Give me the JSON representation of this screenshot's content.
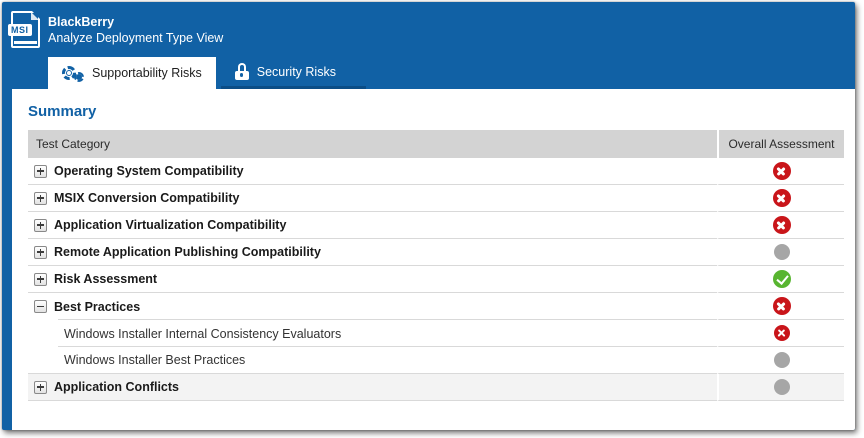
{
  "window": {
    "app_icon_label": "MSI",
    "title": "BlackBerry",
    "subtitle": "Analyze Deployment Type View"
  },
  "tabs": [
    {
      "label": "Supportability Risks",
      "icon": "gears-icon",
      "active": true
    },
    {
      "label": "Security Risks",
      "icon": "lock-icon",
      "active": false
    }
  ],
  "main": {
    "heading": "Summary",
    "table": {
      "columns": [
        "Test Category",
        "Overall Assessment"
      ],
      "rows": [
        {
          "label": "Operating System Compatibility",
          "level": 0,
          "expander": "plus",
          "status": "error"
        },
        {
          "label": "MSIX Conversion Compatibility",
          "level": 0,
          "expander": "plus",
          "status": "error"
        },
        {
          "label": "Application Virtualization Compatibility",
          "level": 0,
          "expander": "plus",
          "status": "error"
        },
        {
          "label": "Remote Application Publishing Compatibility",
          "level": 0,
          "expander": "plus",
          "status": "neutral"
        },
        {
          "label": "Risk Assessment",
          "level": 0,
          "expander": "plus",
          "status": "success"
        },
        {
          "label": "Best Practices",
          "level": 0,
          "expander": "minus",
          "status": "error"
        },
        {
          "label": "Windows Installer Internal Consistency Evaluators",
          "level": 1,
          "expander": null,
          "status": "error"
        },
        {
          "label": "Windows Installer Best Practices",
          "level": 1,
          "expander": null,
          "status": "neutral"
        },
        {
          "label": "Application Conflicts",
          "level": 0,
          "expander": "plus",
          "status": "neutral"
        }
      ]
    }
  },
  "colors": {
    "header_blue": "#1161a5",
    "tab_underline_blue": "#0b4d86",
    "error_red": "#c9151a",
    "success_green": "#58b530",
    "neutral_gray": "#a6a6a6",
    "table_header_gray": "#d3d3d3"
  }
}
